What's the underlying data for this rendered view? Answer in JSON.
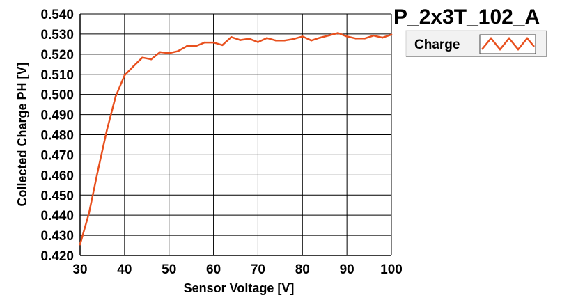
{
  "chart_data": {
    "type": "line",
    "title": "P_2x3T_102_A",
    "xlabel": "Sensor Voltage [V]",
    "ylabel": "Collected Charge PH [V]",
    "xlim": [
      30,
      100
    ],
    "ylim": [
      0.42,
      0.54
    ],
    "x_ticks": [
      "30",
      "40",
      "50",
      "60",
      "70",
      "80",
      "90",
      "100"
    ],
    "y_ticks": [
      "0.420",
      "0.430",
      "0.440",
      "0.450",
      "0.460",
      "0.470",
      "0.480",
      "0.490",
      "0.500",
      "0.510",
      "0.520",
      "0.530",
      "0.540"
    ],
    "grid": true,
    "legend_position": "top-right",
    "series": [
      {
        "name": "Charge",
        "color": "#e8501e",
        "x": [
          30,
          32,
          34,
          36,
          38,
          40,
          42,
          44,
          46,
          48,
          50,
          52,
          54,
          56,
          58,
          60,
          62,
          64,
          66,
          68,
          70,
          72,
          74,
          76,
          78,
          80,
          82,
          84,
          86,
          88,
          90,
          92,
          94,
          96,
          98,
          100
        ],
        "y": [
          0.4255,
          0.441,
          0.462,
          0.482,
          0.499,
          0.5095,
          0.514,
          0.5183,
          0.5175,
          0.521,
          0.5205,
          0.5215,
          0.524,
          0.524,
          0.5258,
          0.5258,
          0.5245,
          0.5285,
          0.527,
          0.5277,
          0.526,
          0.528,
          0.5268,
          0.5268,
          0.5275,
          0.5288,
          0.5268,
          0.5282,
          0.5293,
          0.5305,
          0.5288,
          0.5278,
          0.5278,
          0.5292,
          0.5282,
          0.5297
        ]
      }
    ]
  }
}
